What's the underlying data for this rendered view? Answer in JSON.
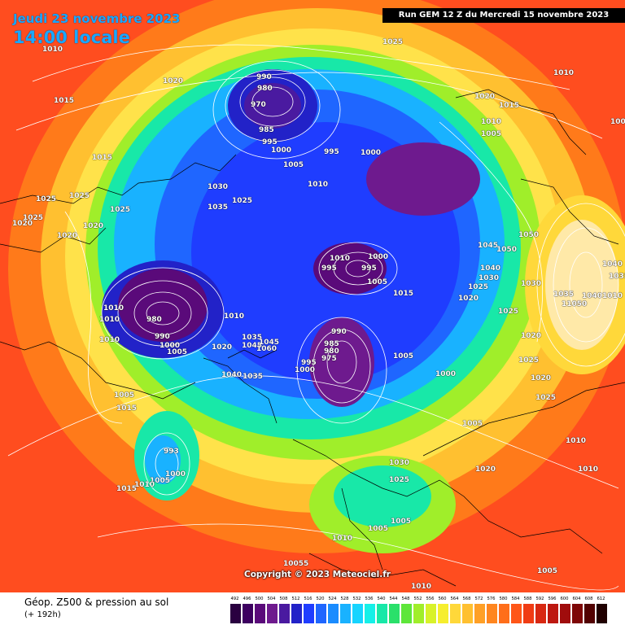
{
  "header": {
    "date_line": "Jeudi 23 novembre 2023",
    "time_line": "14:00 locale",
    "run_line": "Run GEM 12 Z du Mercredi 15 novembre 2023"
  },
  "footer": {
    "title": "Géop. Z500 & pression au sol",
    "subtitle": "(+ 192h)",
    "copyright": "Copyright © 2023 Meteociel.fr"
  },
  "colors": {
    "ocean_warm": "#ff4d1f",
    "high_geopotential": "#ff7a1a",
    "mid_geopotential": "#ffe24a",
    "low_geopotential": "#1f3dff",
    "very_low": "#6a1a8a",
    "isobar": "#ffffff",
    "coast": "#000000"
  },
  "scale": {
    "labels": [
      "492",
      "496",
      "500",
      "504",
      "508",
      "512",
      "516",
      "520",
      "524",
      "528",
      "532",
      "536",
      "540",
      "544",
      "548",
      "552",
      "556",
      "560",
      "564",
      "568",
      "572",
      "576",
      "580",
      "584",
      "588",
      "592",
      "596",
      "600",
      "604",
      "608",
      "612"
    ],
    "colors": [
      "#2a0040",
      "#3d0060",
      "#5a0a7a",
      "#6e1a8e",
      "#4a1aa0",
      "#2222c8",
      "#1f3dff",
      "#1f66ff",
      "#1a8cff",
      "#19b2ff",
      "#16d4ff",
      "#15f0e8",
      "#18e8a8",
      "#2ae06a",
      "#5ee63a",
      "#a0ee2a",
      "#d8f22a",
      "#f6ee2e",
      "#ffd83a",
      "#ffc030",
      "#ffa026",
      "#ff861f",
      "#ff6e1a",
      "#ff5618",
      "#f03c14",
      "#d82812",
      "#bd1810",
      "#a00c0c",
      "#7e0606",
      "#520202",
      "#200000"
    ]
  },
  "isobar_labels": [
    {
      "text": "1010"
    },
    {
      "text": "1015"
    },
    {
      "text": "1020"
    },
    {
      "text": "1025"
    },
    {
      "text": "990"
    },
    {
      "text": "980"
    },
    {
      "text": "970"
    },
    {
      "text": "985"
    },
    {
      "text": "995"
    },
    {
      "text": "1000"
    },
    {
      "text": "1005"
    },
    {
      "text": "1030"
    },
    {
      "text": "1035"
    },
    {
      "text": "1040"
    },
    {
      "text": "1050"
    },
    {
      "text": "975"
    },
    {
      "text": "993"
    },
    {
      "text": "10055"
    },
    {
      "text": "11050"
    },
    {
      "text": "1045"
    },
    {
      "text": "1060"
    }
  ]
}
